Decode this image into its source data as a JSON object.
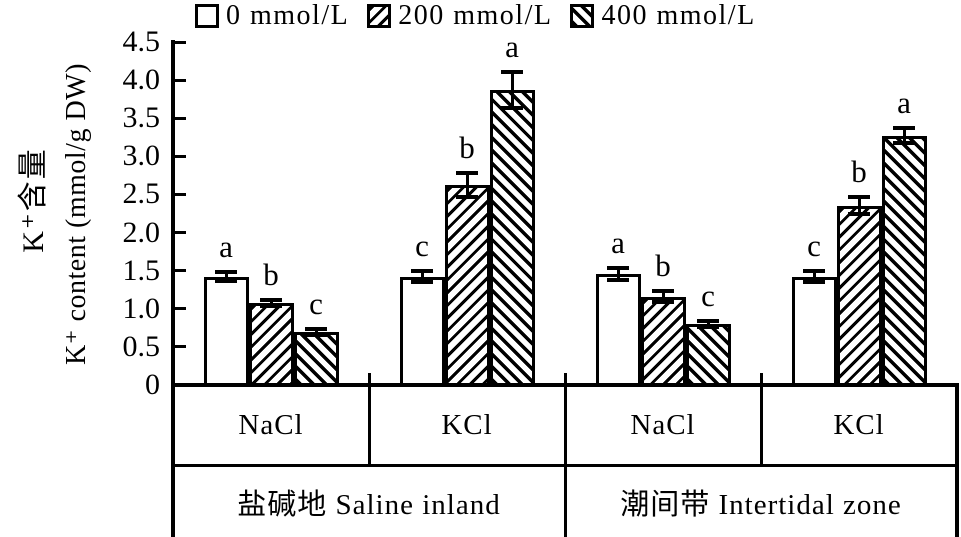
{
  "figure": {
    "background": "#ffffff",
    "ink": "#000000"
  },
  "chart_data": {
    "type": "bar",
    "title": "",
    "ylabel_cn": "K⁺含量",
    "ylabel_en": "K⁺ content (mmol/g DW)",
    "ylim": [
      0,
      4.5
    ],
    "ytick_step": 0.5,
    "ytick_labels": [
      "0",
      "0.5",
      "1.0",
      "1.5",
      "2.0",
      "2.5",
      "3.0",
      "3.5",
      "4.0",
      "4.5"
    ],
    "grid": false,
    "legend_position": "top",
    "series": [
      {
        "name": "0 mmol/L",
        "pattern": "plain"
      },
      {
        "name": "200 mmol/L",
        "pattern": "forward-diagonal"
      },
      {
        "name": "400 mmol/L",
        "pattern": "back-diagonal"
      }
    ],
    "groups": [
      {
        "salt": "NaCl",
        "zone_index": 0,
        "values": [
          1.42,
          1.08,
          0.7
        ],
        "errors": [
          0.06,
          0.04,
          0.04
        ],
        "letters": [
          "a",
          "b",
          "c"
        ]
      },
      {
        "salt": "KCl",
        "zone_index": 0,
        "values": [
          1.42,
          2.62,
          3.87
        ],
        "errors": [
          0.07,
          0.16,
          0.23
        ],
        "letters": [
          "c",
          "b",
          "a"
        ]
      },
      {
        "salt": "NaCl",
        "zone_index": 1,
        "values": [
          1.46,
          1.16,
          0.8
        ],
        "errors": [
          0.08,
          0.07,
          0.04
        ],
        "letters": [
          "a",
          "b",
          "c"
        ]
      },
      {
        "salt": "KCl",
        "zone_index": 1,
        "values": [
          1.42,
          2.35,
          3.27
        ],
        "errors": [
          0.07,
          0.11,
          0.1
        ],
        "letters": [
          "c",
          "b",
          "a"
        ]
      }
    ],
    "zones": [
      {
        "label": "盐碱地 Saline inland"
      },
      {
        "label": "潮间带 Intertidal zone"
      }
    ]
  }
}
